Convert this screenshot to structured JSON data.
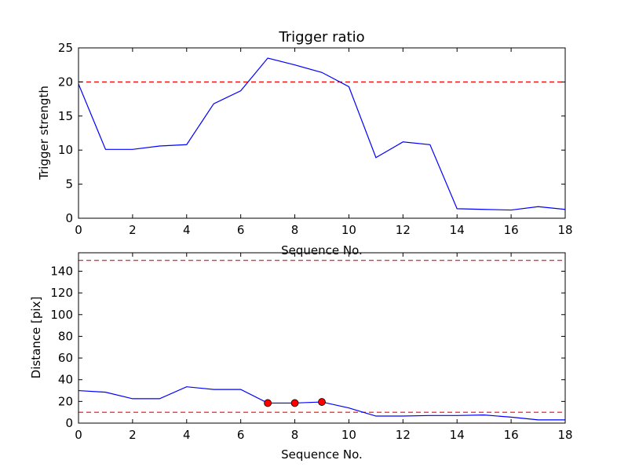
{
  "chart_data": [
    {
      "type": "line",
      "title": "Trigger ratio",
      "xlabel": "Sequence No.",
      "ylabel": "Trigger strength",
      "xlim": [
        0,
        18
      ],
      "ylim": [
        0,
        25
      ],
      "xticks": [
        0,
        2,
        4,
        6,
        8,
        10,
        12,
        14,
        16,
        18
      ],
      "yticks": [
        0,
        5,
        10,
        15,
        20,
        25
      ],
      "grid": false,
      "series": [
        {
          "color": "#0000ff",
          "x": [
            0,
            1,
            2,
            3,
            4,
            5,
            6,
            7,
            8,
            9,
            10,
            11,
            12,
            13,
            14,
            15,
            16,
            17,
            18
          ],
          "values": [
            19.7,
            10.1,
            10.1,
            10.6,
            10.8,
            16.8,
            18.7,
            23.5,
            22.5,
            21.4,
            19.3,
            8.9,
            11.2,
            10.8,
            1.4,
            1.3,
            1.2,
            1.7,
            1.3
          ]
        }
      ],
      "thresholds": [
        {
          "value": 20,
          "color": "#ff0000",
          "style": "dashed"
        }
      ]
    },
    {
      "type": "line",
      "title": "",
      "xlabel": "Sequence No.",
      "ylabel": "Distance [pix]",
      "xlim": [
        0,
        18
      ],
      "ylim": [
        0,
        157
      ],
      "xticks": [
        0,
        2,
        4,
        6,
        8,
        10,
        12,
        14,
        16,
        18
      ],
      "yticks": [
        0,
        20,
        40,
        60,
        80,
        100,
        120,
        140
      ],
      "grid": false,
      "series": [
        {
          "color": "#0000ff",
          "x": [
            0,
            1,
            2,
            3,
            4,
            5,
            6,
            7,
            8,
            9,
            10,
            11,
            12,
            13,
            14,
            15,
            16,
            17,
            18
          ],
          "values": [
            30,
            28.5,
            22.5,
            22.5,
            33.5,
            31,
            31,
            18.5,
            18.5,
            19.5,
            14,
            6.5,
            6.5,
            7,
            7,
            7.5,
            5.5,
            3,
            3
          ]
        }
      ],
      "markers": {
        "color": "#ff0000",
        "x": [
          7,
          8,
          9
        ],
        "values": [
          18.5,
          18.5,
          19.5
        ]
      },
      "thresholds": [
        {
          "value": 150,
          "color": "#ff0000",
          "style": "dashed"
        },
        {
          "value": 10,
          "color": "#ff0000",
          "style": "dashed"
        }
      ]
    }
  ]
}
